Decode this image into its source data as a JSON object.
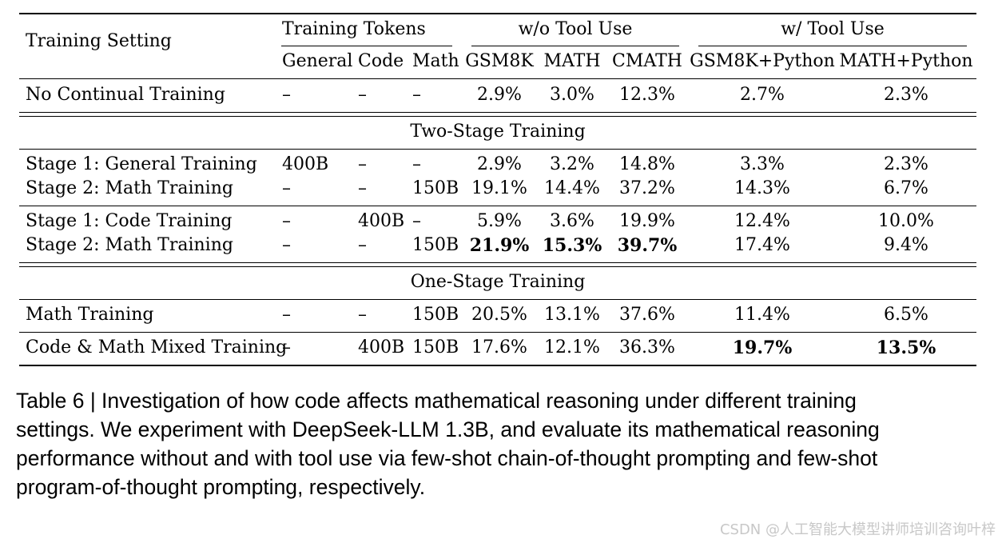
{
  "table": {
    "header": {
      "setting": "Training Setting",
      "group_tokens": "Training Tokens",
      "group_wo_tool": "w/o Tool Use",
      "group_w_tool": "w/ Tool Use",
      "columns": [
        "General",
        "Code",
        "Math",
        "GSM8K",
        "MATH",
        "CMATH",
        "GSM8K+Python",
        "MATH+Python"
      ]
    },
    "sections": {
      "two_stage": "Two-Stage Training",
      "one_stage": "One-Stage Training"
    },
    "rows": [
      {
        "setting": "No Continual Training",
        "cells": [
          "–",
          "–",
          "–",
          "2.9%",
          "3.0%",
          "12.3%",
          "2.7%",
          "2.3%"
        ],
        "bold": []
      },
      {
        "setting": "Stage 1: General Training",
        "cells": [
          "400B",
          "–",
          "–",
          "2.9%",
          "3.2%",
          "14.8%",
          "3.3%",
          "2.3%"
        ],
        "bold": []
      },
      {
        "setting": "Stage 2: Math Training",
        "cells": [
          "–",
          "–",
          "150B",
          "19.1%",
          "14.4%",
          "37.2%",
          "14.3%",
          "6.7%"
        ],
        "bold": []
      },
      {
        "setting": "Stage 1: Code Training",
        "cells": [
          "–",
          "400B",
          "–",
          "5.9%",
          "3.6%",
          "19.9%",
          "12.4%",
          "10.0%"
        ],
        "bold": []
      },
      {
        "setting": "Stage 2: Math Training",
        "cells": [
          "–",
          "–",
          "150B",
          "21.9%",
          "15.3%",
          "39.7%",
          "17.4%",
          "9.4%"
        ],
        "bold": [
          3,
          4,
          5
        ]
      },
      {
        "setting": "Math Training",
        "cells": [
          "–",
          "–",
          "150B",
          "20.5%",
          "13.1%",
          "37.6%",
          "11.4%",
          "6.5%"
        ],
        "bold": []
      },
      {
        "setting": "Code & Math Mixed Training",
        "cells": [
          "–",
          "400B",
          "150B",
          "17.6%",
          "12.1%",
          "36.3%",
          "19.7%",
          "13.5%"
        ],
        "bold": [
          6,
          7
        ]
      }
    ]
  },
  "caption": {
    "lines": [
      "Table 6 | Investigation of how code affects mathematical reasoning under different training",
      "settings. We experiment with DeepSeek-LLM 1.3B, and evaluate its mathematical reasoning",
      "performance without and with tool use via few-shot chain-of-thought prompting and few-shot",
      "program-of-thought prompting, respectively."
    ]
  },
  "watermark": "CSDN @人工智能大模型讲师培训咨询叶梓"
}
